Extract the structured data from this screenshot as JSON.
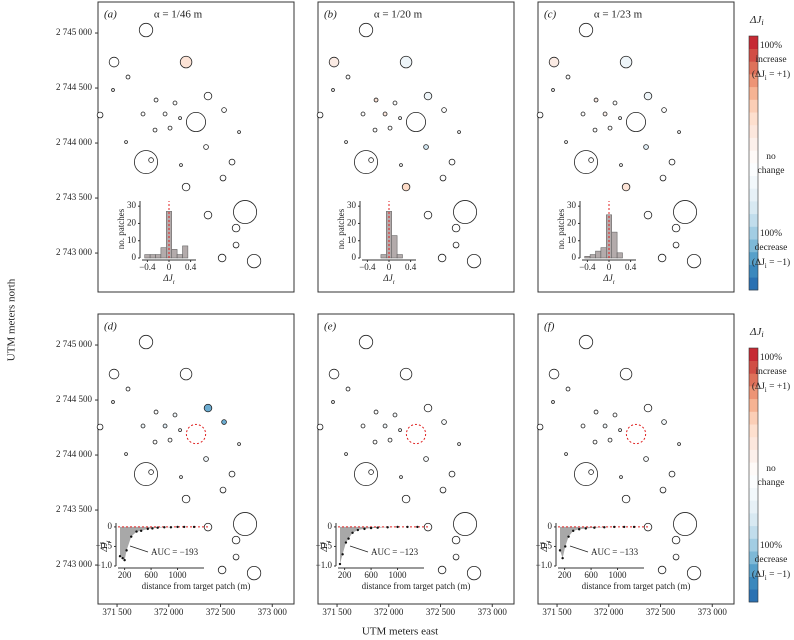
{
  "chart_data": {
    "type": "patch-map",
    "y_label": "UTM meters north",
    "x_label": "UTM meters east",
    "xlim": [
      371316,
      373210
    ],
    "ylim": [
      2742646,
      2745282
    ],
    "xticks": [
      {
        "value": 371500,
        "label": "371 500"
      },
      {
        "value": 372000,
        "label": "372 000"
      },
      {
        "value": 372500,
        "label": "372 500"
      },
      {
        "value": 373000,
        "label": "373 000"
      }
    ],
    "yticks": [
      {
        "value": 2743000,
        "label": "2 743 000"
      },
      {
        "value": 2743500,
        "label": "2 743 500"
      },
      {
        "value": 2744000,
        "label": "2 744 000"
      },
      {
        "value": 2744500,
        "label": "2 744 500"
      },
      {
        "value": 2745000,
        "label": "2 745 000"
      }
    ],
    "patch_x": [
      371780,
      371471,
      371606,
      372167,
      371461,
      371877,
      372060,
      372379,
      371751,
      371964,
      372109,
      371336,
      372263,
      372534,
      372679,
      371867,
      372012,
      371587,
      372360,
      371780,
      371829,
      372118,
      372611,
      372167,
      372379,
      372737,
      372650,
      372650,
      372515,
      372824,
      372524
    ],
    "patch_y": [
      2745027,
      2744736,
      2744600,
      2744736,
      2744482,
      2744391,
      2744364,
      2744427,
      2744264,
      2744264,
      2744227,
      2744255,
      2744191,
      2744300,
      2744100,
      2744118,
      2744136,
      2744009,
      2743964,
      2743827,
      2743845,
      2743800,
      2743827,
      2743600,
      2743345,
      2743373,
      2743227,
      2743073,
      2742955,
      2742927,
      2743682
    ],
    "patch_r": [
      65,
      47,
      19,
      56,
      14,
      19,
      19,
      37,
      19,
      19,
      14,
      28,
      93,
      23,
      14,
      19,
      19,
      14,
      23,
      112,
      23,
      14,
      28,
      37,
      37,
      112,
      37,
      28,
      37,
      65,
      28
    ],
    "target_patch": 12,
    "panels": [
      {
        "label": "(a)",
        "alpha": "α = 1/46 m",
        "delta": [
          0,
          0,
          0,
          0.3,
          0,
          0,
          0,
          0,
          0,
          0,
          0,
          0,
          0,
          0,
          0,
          0,
          0,
          0,
          0,
          0,
          0,
          0,
          0,
          0,
          0,
          0,
          0,
          0,
          0,
          0,
          0
        ]
      },
      {
        "label": "(b)",
        "alpha": "α = 1/20 m",
        "delta": [
          0,
          0.2,
          0,
          -0.2,
          0,
          0.3,
          0,
          -0.2,
          0,
          0.25,
          0,
          0,
          0,
          0,
          0,
          0,
          0,
          0,
          -0.4,
          0,
          0,
          0,
          0,
          0.4,
          0,
          0,
          0,
          0,
          0,
          0,
          0
        ]
      },
      {
        "label": "(c)",
        "alpha": "α = 1/23 m",
        "delta": [
          0,
          0.2,
          0,
          -0.2,
          0,
          0.2,
          0,
          -0.2,
          0,
          0.15,
          0,
          0,
          0,
          0,
          0,
          0,
          0,
          0,
          -0.3,
          0,
          0,
          0,
          0,
          0.3,
          0,
          0,
          0,
          0,
          0,
          0,
          0
        ]
      },
      {
        "label": "(d)",
        "delta": [
          0,
          0,
          0,
          0,
          0,
          0,
          -0.15,
          -0.7,
          -0.2,
          -0.3,
          0,
          0,
          null,
          -0.7,
          0,
          0,
          0,
          0,
          -0.2,
          0,
          0,
          0,
          0,
          0,
          0,
          0,
          0,
          0,
          0,
          0,
          0
        ]
      },
      {
        "label": "(e)",
        "delta": [
          0,
          0,
          0,
          0,
          0,
          0,
          -0.1,
          0,
          0,
          -0.2,
          0,
          0,
          null,
          -0.1,
          0,
          0,
          0,
          0,
          -0.1,
          0,
          0,
          0,
          0,
          0,
          0,
          0,
          0,
          0,
          0,
          0,
          0
        ]
      },
      {
        "label": "(f)",
        "delta": [
          0,
          0,
          0,
          0,
          0,
          0,
          0,
          0,
          0,
          -0.2,
          0,
          0,
          null,
          -0.15,
          0,
          0,
          0,
          0,
          -0.1,
          0,
          0,
          0,
          0,
          0,
          0,
          0,
          0,
          0,
          0,
          0,
          0
        ]
      }
    ],
    "histograms": [
      {
        "bins": [
          -0.45,
          -0.35,
          -0.25,
          -0.15,
          -0.05,
          0.05,
          0.15,
          0.25,
          0.35
        ],
        "counts": [
          2,
          2,
          2,
          6,
          27,
          5,
          2,
          7
        ]
      },
      {
        "bins": [
          -0.45,
          -0.35,
          -0.25,
          -0.15,
          -0.05,
          0.05,
          0.15,
          0.25,
          0.35
        ],
        "counts": [
          0,
          0,
          0,
          2,
          27,
          13,
          2,
          0
        ]
      },
      {
        "bins": [
          -0.45,
          -0.35,
          -0.25,
          -0.15,
          -0.05,
          0.05,
          0.15,
          0.25,
          0.35
        ],
        "counts": [
          1,
          2,
          4,
          6,
          25,
          15,
          3,
          0
        ]
      }
    ],
    "hist_xlim": [
      -0.5,
      0.5
    ],
    "hist_ylim": [
      0,
      33
    ],
    "hist_xticks": [
      {
        "value": -0.4,
        "label": "−0.4"
      },
      0,
      0.4
    ],
    "hist_yticks": [
      0,
      10,
      20,
      30
    ],
    "hist_ref": 0,
    "hist_ylabel": "no. patches",
    "hist_xlabel": [
      {
        "t": "ΔJ"
      },
      {
        "t": "i",
        "sub": true
      }
    ],
    "decay": [
      {
        "distance": [
          130,
          170,
          200,
          230,
          300,
          380,
          450,
          550,
          620,
          700,
          800,
          900,
          1000,
          1100,
          1250
        ],
        "values": [
          -0.75,
          -0.8,
          -0.85,
          -0.6,
          -0.25,
          -0.12,
          -0.1,
          -0.05,
          -0.04,
          -0.02,
          -0.01,
          -0.01,
          0,
          0,
          0
        ],
        "auc": "AUC = −193"
      },
      {
        "distance": [
          130,
          170,
          220,
          260,
          320,
          400,
          500,
          600,
          700,
          850,
          1000,
          1150,
          1300
        ],
        "values": [
          -0.95,
          -0.7,
          -0.4,
          -0.3,
          -0.15,
          -0.08,
          -0.05,
          -0.03,
          -0.02,
          -0.01,
          0,
          0,
          0
        ],
        "auc": "AUC = −123"
      },
      {
        "distance": [
          130,
          170,
          210,
          260,
          330,
          420,
          520,
          650,
          800,
          950,
          1100,
          1250
        ],
        "values": [
          -0.6,
          -0.8,
          -0.5,
          -0.25,
          -0.1,
          -0.06,
          -0.04,
          -0.02,
          -0.01,
          0,
          0,
          0
        ],
        "auc": "AUC = −133"
      }
    ],
    "decay_xlim": [
      100,
      1400
    ],
    "decay_ylim": [
      -1,
      0.1
    ],
    "decay_xticks": [
      200,
      600,
      1000
    ],
    "decay_yticks": [
      0,
      {
        "value": -0.5,
        "label": "−0.5"
      },
      {
        "value": -1,
        "label": "−1.0"
      }
    ],
    "decay_ref": 0,
    "decay_ylabel": [
      {
        "t": "ΔJ"
      },
      {
        "t": "i",
        "sub": true
      }
    ],
    "decay_xlabel": "distance from target patch (m)",
    "colorbar": {
      "title": [
        {
          "t": "ΔJ"
        },
        {
          "t": "i",
          "sub": true
        }
      ],
      "lim": [
        -1,
        1
      ],
      "steps": 20,
      "colors": [
        "#2166ac",
        "#4393c3",
        "#92c5de",
        "#d1e5f0",
        "#eef5f9",
        "#ffffff",
        "#fbebe4",
        "#fddbc7",
        "#f4a582",
        "#d6604d",
        "#c0182b"
      ],
      "top": [
        "100%",
        "increase",
        [
          {
            "t": "(ΔJ"
          },
          {
            "t": "i",
            "sub": true
          },
          {
            "t": " = +1)"
          }
        ]
      ],
      "middle": [
        "no",
        "change"
      ],
      "bottom": [
        "100%",
        "decrease",
        [
          {
            "t": "(ΔJ"
          },
          {
            "t": "i",
            "sub": true
          },
          {
            "t": " = −1)"
          }
        ]
      ]
    }
  }
}
